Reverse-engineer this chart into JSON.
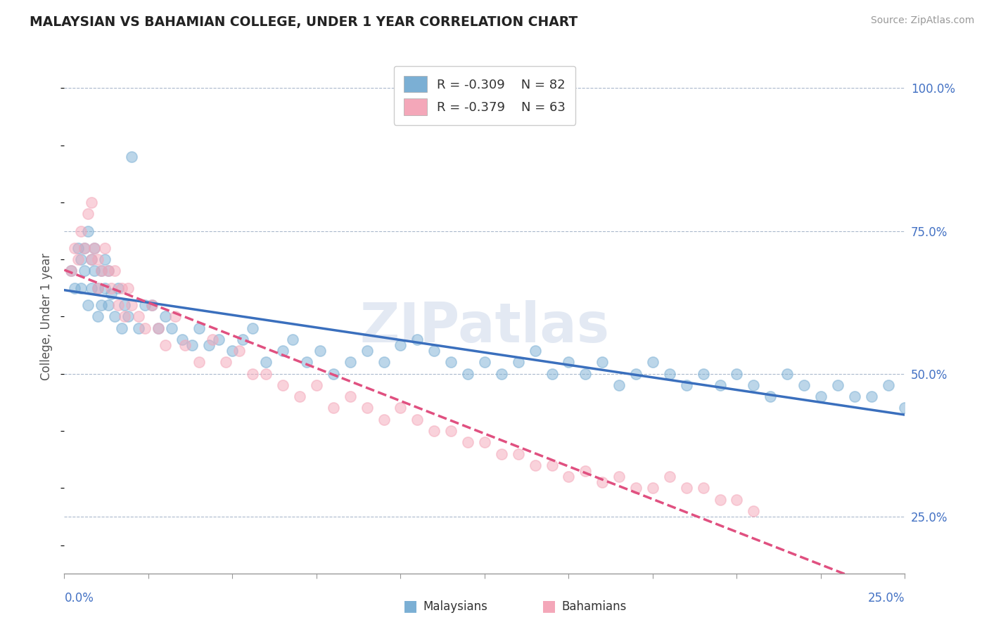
{
  "title": "MALAYSIAN VS BAHAMIAN COLLEGE, UNDER 1 YEAR CORRELATION CHART",
  "source": "Source: ZipAtlas.com",
  "ylabel_label": "College, Under 1 year",
  "xmin": 0.0,
  "xmax": 0.25,
  "ymin": 0.15,
  "ymax": 1.05,
  "malaysians_color": "#7bafd4",
  "bahamians_color": "#f4a7b9",
  "trend_malaysians_color": "#3a6fbd",
  "trend_bahamians_color": "#e05080",
  "legend_R_malaysians": "R = -0.309",
  "legend_N_malaysians": "N = 82",
  "legend_R_bahamians": "R = -0.379",
  "legend_N_bahamians": "N = 63",
  "watermark": "ZIPatlas",
  "malaysians_x": [
    0.002,
    0.003,
    0.004,
    0.005,
    0.005,
    0.006,
    0.006,
    0.007,
    0.007,
    0.008,
    0.008,
    0.009,
    0.009,
    0.01,
    0.01,
    0.011,
    0.011,
    0.012,
    0.012,
    0.013,
    0.013,
    0.014,
    0.015,
    0.016,
    0.017,
    0.018,
    0.019,
    0.02,
    0.022,
    0.024,
    0.026,
    0.028,
    0.03,
    0.032,
    0.035,
    0.038,
    0.04,
    0.043,
    0.046,
    0.05,
    0.053,
    0.056,
    0.06,
    0.065,
    0.068,
    0.072,
    0.076,
    0.08,
    0.085,
    0.09,
    0.095,
    0.1,
    0.105,
    0.11,
    0.115,
    0.12,
    0.125,
    0.13,
    0.135,
    0.14,
    0.145,
    0.15,
    0.155,
    0.16,
    0.165,
    0.17,
    0.175,
    0.18,
    0.185,
    0.19,
    0.195,
    0.2,
    0.205,
    0.21,
    0.215,
    0.22,
    0.225,
    0.23,
    0.235,
    0.24,
    0.245,
    0.25
  ],
  "malaysians_y": [
    0.68,
    0.65,
    0.72,
    0.7,
    0.65,
    0.72,
    0.68,
    0.75,
    0.62,
    0.7,
    0.65,
    0.68,
    0.72,
    0.65,
    0.6,
    0.68,
    0.62,
    0.65,
    0.7,
    0.62,
    0.68,
    0.64,
    0.6,
    0.65,
    0.58,
    0.62,
    0.6,
    0.88,
    0.58,
    0.62,
    0.62,
    0.58,
    0.6,
    0.58,
    0.56,
    0.55,
    0.58,
    0.55,
    0.56,
    0.54,
    0.56,
    0.58,
    0.52,
    0.54,
    0.56,
    0.52,
    0.54,
    0.5,
    0.52,
    0.54,
    0.52,
    0.55,
    0.56,
    0.54,
    0.52,
    0.5,
    0.52,
    0.5,
    0.52,
    0.54,
    0.5,
    0.52,
    0.5,
    0.52,
    0.48,
    0.5,
    0.52,
    0.5,
    0.48,
    0.5,
    0.48,
    0.5,
    0.48,
    0.46,
    0.5,
    0.48,
    0.46,
    0.48,
    0.46,
    0.46,
    0.48,
    0.44
  ],
  "bahamians_x": [
    0.002,
    0.003,
    0.004,
    0.005,
    0.006,
    0.007,
    0.008,
    0.008,
    0.009,
    0.01,
    0.01,
    0.011,
    0.012,
    0.013,
    0.014,
    0.015,
    0.016,
    0.017,
    0.018,
    0.019,
    0.02,
    0.022,
    0.024,
    0.026,
    0.028,
    0.03,
    0.033,
    0.036,
    0.04,
    0.044,
    0.048,
    0.052,
    0.056,
    0.06,
    0.065,
    0.07,
    0.075,
    0.08,
    0.085,
    0.09,
    0.095,
    0.1,
    0.105,
    0.11,
    0.115,
    0.12,
    0.125,
    0.13,
    0.135,
    0.14,
    0.145,
    0.15,
    0.155,
    0.16,
    0.165,
    0.17,
    0.175,
    0.18,
    0.185,
    0.19,
    0.195,
    0.2,
    0.205
  ],
  "bahamians_y": [
    0.68,
    0.72,
    0.7,
    0.75,
    0.72,
    0.78,
    0.8,
    0.7,
    0.72,
    0.65,
    0.7,
    0.68,
    0.72,
    0.68,
    0.65,
    0.68,
    0.62,
    0.65,
    0.6,
    0.65,
    0.62,
    0.6,
    0.58,
    0.62,
    0.58,
    0.55,
    0.6,
    0.55,
    0.52,
    0.56,
    0.52,
    0.54,
    0.5,
    0.5,
    0.48,
    0.46,
    0.48,
    0.44,
    0.46,
    0.44,
    0.42,
    0.44,
    0.42,
    0.4,
    0.4,
    0.38,
    0.38,
    0.36,
    0.36,
    0.34,
    0.34,
    0.32,
    0.33,
    0.31,
    0.32,
    0.3,
    0.3,
    0.32,
    0.3,
    0.3,
    0.28,
    0.28,
    0.26
  ]
}
